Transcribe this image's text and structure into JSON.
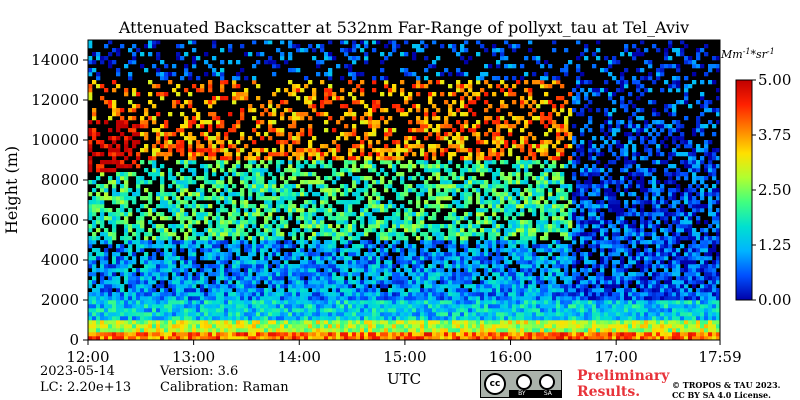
{
  "chart_data": {
    "type": "heatmap",
    "title": "Attenuated Backscatter at 532nm Far-Range of pollyxt_tau at Tel_Aviv",
    "ylabel": "Height (m)",
    "xlabel": "UTC",
    "x_ticks": [
      "12:00",
      "13:00",
      "14:00",
      "15:00",
      "16:00",
      "17:00",
      "17:59"
    ],
    "x_range_hours": [
      12.0,
      17.983
    ],
    "y_ticks": [
      0,
      2000,
      4000,
      6000,
      8000,
      10000,
      12000,
      14000
    ],
    "ylim": [
      0,
      15000
    ],
    "colorbar": {
      "unit_label": "Mm^{-1}*sr^{-1}",
      "ticks": [
        "0.00",
        "1.25",
        "2.50",
        "3.75",
        "5.00"
      ],
      "range": [
        0,
        5
      ],
      "colormap": [
        "#0000a8",
        "#0050ff",
        "#00b4ff",
        "#00e0d0",
        "#40ff80",
        "#b0ff30",
        "#ffe000",
        "#ff8000",
        "#ff2000",
        "#c00000"
      ]
    },
    "layers": [
      {
        "from_m": 0,
        "to_m": 500,
        "level": 4.0
      },
      {
        "from_m": 500,
        "to_m": 1000,
        "level": 2.8
      },
      {
        "from_m": 1000,
        "to_m": 2000,
        "level": 1.4
      },
      {
        "from_m": 2000,
        "to_m": 5000,
        "level": 1.0
      },
      {
        "from_m": 5000,
        "to_m": 9000,
        "level": 2.0
      },
      {
        "from_m": 9000,
        "to_m": 13000,
        "level": 3.8
      }
    ],
    "cloud": {
      "start_hour": 12.0,
      "end_hour": 12.5,
      "from_m": 8500,
      "to_m": 11000
    },
    "no_signal_after_hour": 16.6
  },
  "footer": {
    "date": "2023-05-14",
    "lc": "LC: 2.20e+13",
    "version": "Version: 3.6",
    "calibration": "Calibration: Raman",
    "preliminary_line1": "Preliminary",
    "preliminary_line2": "Results.",
    "copyright_line1": "© TROPOS & TAU 2023.",
    "copyright_line2": "CC BY SA 4.0 License."
  },
  "license_badge": {
    "cc": "cc",
    "by": "BY",
    "sa": "SA"
  }
}
